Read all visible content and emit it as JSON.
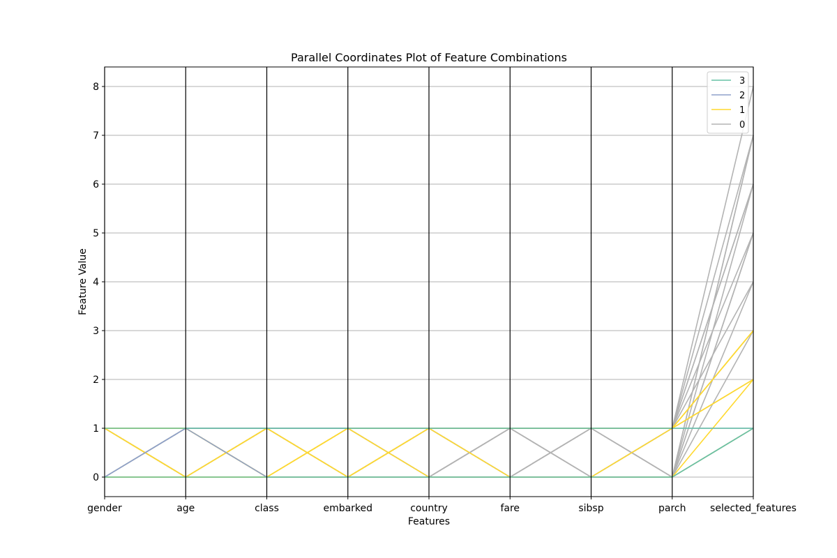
{
  "chart_data": {
    "type": "line",
    "subtype": "parallel-coordinates",
    "title": "Parallel Coordinates Plot of Feature Combinations",
    "xlabel": "Features",
    "ylabel": "Feature Value",
    "ylim": [
      -0.4,
      8.4
    ],
    "yticks": [
      0,
      1,
      2,
      3,
      4,
      5,
      6,
      7,
      8
    ],
    "grid": true,
    "legend_position": "top-right",
    "categories": [
      "gender",
      "age",
      "class",
      "embarked",
      "country",
      "fare",
      "sibsp",
      "parch",
      "selected_features"
    ],
    "classes": [
      {
        "name": "3",
        "color": "#66c2a5"
      },
      {
        "name": "2",
        "color": "#8da0cb"
      },
      {
        "name": "1",
        "color": "#ffd92f"
      },
      {
        "name": "0",
        "color": "#b3b3b3"
      }
    ],
    "series": [
      {
        "class": "2",
        "values": [
          0,
          1,
          1,
          1,
          1,
          1,
          1,
          1,
          1
        ]
      },
      {
        "class": "2",
        "values": [
          0,
          1,
          0,
          0,
          0,
          0,
          0,
          0,
          1
        ]
      },
      {
        "class": "3",
        "values": [
          1,
          1,
          1,
          1,
          1,
          1,
          1,
          1,
          1
        ]
      },
      {
        "class": "3",
        "values": [
          0,
          0,
          0,
          0,
          0,
          0,
          0,
          0,
          1
        ]
      },
      {
        "class": "1",
        "values": [
          0,
          1,
          0,
          1,
          1,
          1,
          1,
          1,
          2
        ]
      },
      {
        "class": "1",
        "values": [
          1,
          0,
          0,
          1,
          1,
          1,
          1,
          1,
          3
        ]
      },
      {
        "class": "1",
        "values": [
          1,
          1,
          0,
          0,
          1,
          0,
          0,
          0,
          1
        ]
      },
      {
        "class": "1",
        "values": [
          0,
          0,
          1,
          0,
          0,
          0,
          0,
          0,
          2
        ]
      },
      {
        "class": "1",
        "values": [
          1,
          1,
          0,
          0,
          0,
          0,
          0,
          1,
          2
        ]
      },
      {
        "class": "1",
        "values": [
          0,
          0,
          0,
          1,
          0,
          0,
          0,
          0,
          1
        ]
      },
      {
        "class": "1",
        "values": [
          1,
          0,
          1,
          0,
          1,
          1,
          1,
          1,
          3
        ]
      },
      {
        "class": "0",
        "values": [
          1,
          0,
          1,
          0,
          0,
          1,
          0,
          1,
          8
        ]
      },
      {
        "class": "0",
        "values": [
          0,
          1,
          0,
          1,
          0,
          1,
          1,
          1,
          7
        ]
      },
      {
        "class": "0",
        "values": [
          1,
          0,
          0,
          0,
          1,
          0,
          1,
          0,
          7
        ]
      },
      {
        "class": "0",
        "values": [
          1,
          1,
          1,
          1,
          1,
          1,
          1,
          0,
          6
        ]
      },
      {
        "class": "0",
        "values": [
          0,
          0,
          1,
          0,
          0,
          1,
          0,
          1,
          6
        ]
      },
      {
        "class": "0",
        "values": [
          1,
          0,
          1,
          0,
          1,
          0,
          1,
          0,
          5
        ]
      },
      {
        "class": "0",
        "values": [
          1,
          1,
          1,
          1,
          0,
          1,
          0,
          1,
          5
        ]
      },
      {
        "class": "0",
        "values": [
          0,
          0,
          0,
          0,
          1,
          0,
          1,
          1,
          4
        ]
      },
      {
        "class": "0",
        "values": [
          1,
          0,
          1,
          1,
          0,
          1,
          0,
          0,
          4
        ]
      },
      {
        "class": "0",
        "values": [
          0,
          1,
          1,
          0,
          0,
          0,
          1,
          1,
          3
        ]
      },
      {
        "class": "0",
        "values": [
          1,
          0,
          0,
          1,
          1,
          0,
          0,
          0,
          3
        ]
      },
      {
        "class": "0",
        "values": [
          1,
          1,
          1,
          0,
          0,
          1,
          1,
          1,
          2
        ]
      },
      {
        "class": "0",
        "values": [
          0,
          0,
          1,
          1,
          0,
          0,
          1,
          0,
          5
        ]
      },
      {
        "class": "0",
        "values": [
          1,
          0,
          0,
          0,
          1,
          0,
          0,
          1,
          6
        ]
      },
      {
        "class": "0",
        "values": [
          0,
          1,
          1,
          0,
          1,
          1,
          0,
          0,
          7
        ]
      }
    ]
  }
}
